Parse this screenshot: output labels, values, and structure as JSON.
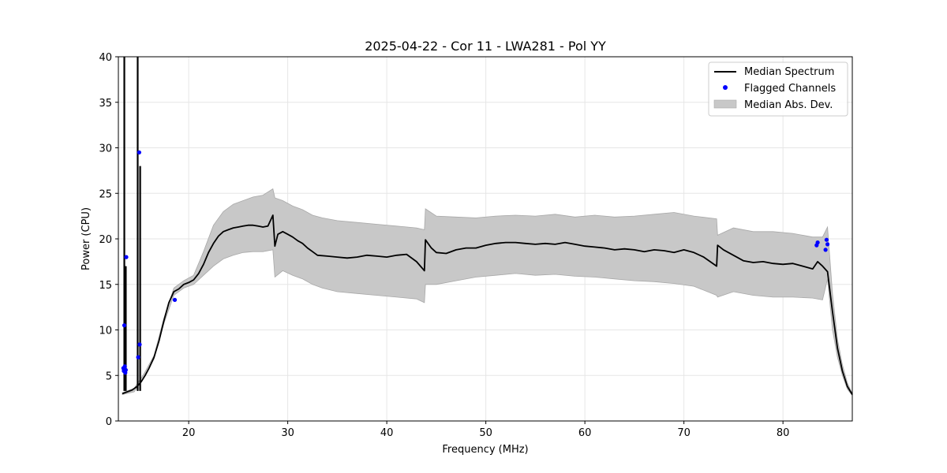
{
  "chart_data": {
    "type": "line",
    "title": "2025-04-22 - Cor 11 - LWA281 - Pol YY",
    "xlabel": "Frequency (MHz)",
    "ylabel": "Power (CPU)",
    "xlim": [
      12.9,
      87.0
    ],
    "ylim": [
      0,
      40
    ],
    "xticks": [
      20,
      30,
      40,
      50,
      60,
      70,
      80
    ],
    "yticks": [
      0,
      5,
      10,
      15,
      20,
      25,
      30,
      35,
      40
    ],
    "grid": true,
    "legend_position": "top-right",
    "legend": [
      {
        "label": "Median Spectrum",
        "kind": "line",
        "color": "#000000"
      },
      {
        "label": "Flagged Channels",
        "kind": "marker",
        "color": "#0000ff"
      },
      {
        "label": "Median Abs. Dev.",
        "kind": "patch",
        "color": "#c8c8c8"
      }
    ],
    "series": [
      {
        "name": "Median Spectrum",
        "x": [
          13.3,
          13.8,
          14.3,
          14.8,
          15.2,
          15.6,
          16.0,
          16.5,
          17.0,
          17.5,
          18.0,
          18.5,
          19.0,
          19.5,
          20.0,
          20.5,
          21.0,
          21.5,
          22.0,
          22.5,
          23.0,
          23.5,
          24.0,
          24.5,
          25.0,
          25.5,
          26.0,
          26.5,
          27.0,
          27.5,
          28.0,
          28.5,
          28.7,
          29.0,
          29.5,
          30.0,
          30.5,
          31.0,
          31.5,
          32.0,
          32.5,
          33.0,
          34.0,
          35.0,
          36.0,
          37.0,
          38.0,
          39.0,
          40.0,
          41.0,
          42.0,
          43.0,
          43.8,
          43.9,
          44.5,
          45.0,
          46.0,
          47.0,
          48.0,
          49.0,
          50.0,
          51.0,
          52.0,
          53.0,
          54.0,
          55.0,
          56.0,
          57.0,
          58.0,
          59.0,
          60.0,
          61.0,
          62.0,
          63.0,
          64.0,
          65.0,
          66.0,
          67.0,
          68.0,
          69.0,
          70.0,
          71.0,
          72.0,
          73.3,
          73.4,
          74.0,
          75.0,
          76.0,
          77.0,
          78.0,
          79.0,
          80.0,
          81.0,
          82.0,
          83.0,
          83.5,
          84.0,
          84.5,
          85.0,
          85.5,
          86.0,
          86.5,
          87.0
        ],
        "y": [
          3.0,
          3.2,
          3.4,
          3.8,
          4.3,
          5.0,
          5.8,
          7.0,
          8.8,
          11.0,
          13.0,
          14.2,
          14.5,
          15.0,
          15.2,
          15.5,
          16.2,
          17.2,
          18.5,
          19.5,
          20.3,
          20.8,
          21.0,
          21.2,
          21.3,
          21.4,
          21.5,
          21.5,
          21.4,
          21.3,
          21.4,
          22.6,
          19.2,
          20.5,
          20.8,
          20.5,
          20.2,
          19.8,
          19.5,
          19.0,
          18.6,
          18.2,
          18.1,
          18.0,
          17.9,
          18.0,
          18.2,
          18.1,
          18.0,
          18.2,
          18.3,
          17.5,
          16.5,
          19.9,
          19.0,
          18.5,
          18.4,
          18.8,
          19.0,
          19.0,
          19.3,
          19.5,
          19.6,
          19.6,
          19.5,
          19.4,
          19.5,
          19.4,
          19.6,
          19.4,
          19.2,
          19.1,
          19.0,
          18.8,
          18.9,
          18.8,
          18.6,
          18.8,
          18.7,
          18.5,
          18.8,
          18.5,
          18.0,
          17.0,
          19.3,
          18.8,
          18.2,
          17.6,
          17.4,
          17.5,
          17.3,
          17.2,
          17.3,
          17.0,
          16.7,
          17.5,
          17.0,
          16.4,
          12.0,
          8.0,
          5.5,
          3.8,
          2.9
        ]
      },
      {
        "name": "Flagged Channels",
        "x": [
          13.4,
          13.45,
          13.5,
          13.55,
          13.6,
          13.65,
          13.7,
          14.9,
          15.0,
          15.05,
          18.6,
          83.4,
          83.5,
          84.3,
          84.4,
          84.5
        ],
        "y": [
          5.8,
          5.5,
          10.5,
          6.0,
          5.3,
          5.6,
          18.0,
          7.0,
          29.5,
          8.4,
          13.3,
          19.3,
          19.6,
          18.8,
          19.9,
          19.4
        ]
      }
    ],
    "mad_band": {
      "name": "Median Abs. Dev.",
      "x": [
        13.3,
        14.5,
        15.5,
        16.5,
        17.5,
        18.5,
        19.5,
        20.5,
        21.5,
        22.5,
        23.5,
        24.5,
        25.5,
        26.5,
        27.5,
        28.5,
        28.7,
        29.5,
        30.5,
        31.5,
        32.5,
        33.5,
        35.0,
        37.0,
        39.0,
        41.0,
        43.0,
        43.8,
        43.9,
        45.0,
        47.0,
        49.0,
        51.0,
        53.0,
        55.0,
        57.0,
        59.0,
        61.0,
        63.0,
        65.0,
        67.0,
        69.0,
        71.0,
        73.3,
        73.4,
        75.0,
        77.0,
        79.0,
        81.0,
        83.0,
        84.0,
        84.5,
        85.0,
        85.5,
        86.0,
        86.5,
        87.0
      ],
      "upper": [
        3.1,
        3.6,
        5.2,
        7.2,
        11.3,
        14.6,
        15.4,
        16.0,
        18.6,
        21.5,
        23.0,
        23.8,
        24.2,
        24.6,
        24.8,
        25.5,
        24.5,
        24.2,
        23.6,
        23.2,
        22.6,
        22.3,
        22.0,
        21.8,
        21.6,
        21.4,
        21.2,
        21.0,
        23.3,
        22.5,
        22.4,
        22.3,
        22.5,
        22.6,
        22.5,
        22.7,
        22.4,
        22.6,
        22.4,
        22.5,
        22.7,
        22.9,
        22.5,
        22.2,
        20.4,
        21.2,
        20.8,
        20.8,
        20.6,
        20.2,
        20.2,
        21.3,
        14.0,
        9.0,
        6.2,
        4.2,
        3.0
      ],
      "lower": [
        2.9,
        3.2,
        4.8,
        6.8,
        10.7,
        13.8,
        14.6,
        15.0,
        16.0,
        17.0,
        17.8,
        18.2,
        18.5,
        18.6,
        18.6,
        18.8,
        15.8,
        16.5,
        16.0,
        15.6,
        15.0,
        14.6,
        14.2,
        14.0,
        13.8,
        13.6,
        13.4,
        13.0,
        15.0,
        15.0,
        15.4,
        15.8,
        16.0,
        16.2,
        16.0,
        16.1,
        15.9,
        15.8,
        15.6,
        15.4,
        15.3,
        15.1,
        14.8,
        13.8,
        13.6,
        14.2,
        13.8,
        13.6,
        13.6,
        13.5,
        13.3,
        15.6,
        10.0,
        7.0,
        5.0,
        3.5,
        2.8
      ]
    },
    "spikes": [
      {
        "x": 13.5,
        "y": 40
      },
      {
        "x": 13.65,
        "y": 17.0
      },
      {
        "x": 14.85,
        "y": 40
      },
      {
        "x": 15.1,
        "y": 28.0
      }
    ]
  }
}
